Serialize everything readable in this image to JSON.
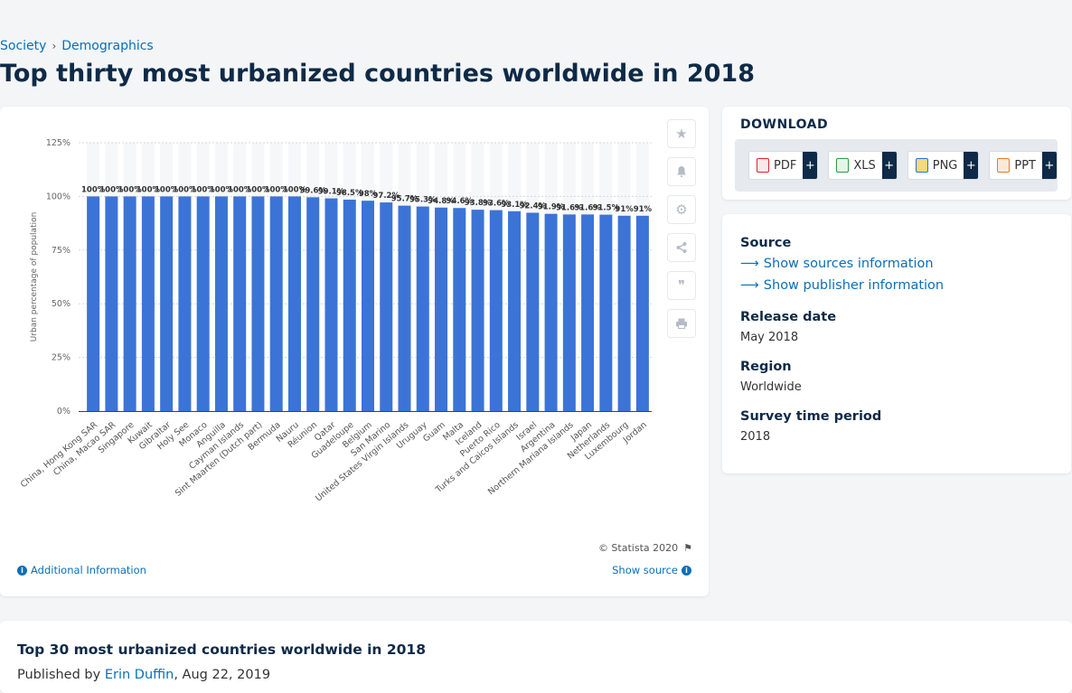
{
  "breadcrumb": {
    "items": [
      "Society",
      "Demographics"
    ],
    "sep": "›"
  },
  "page_title": "Top thirty most urbanized countries worldwide in 2018",
  "chart_card": {
    "copyright": "© Statista 2020",
    "additional_info": "Additional Information",
    "show_source": "Show source"
  },
  "download": {
    "title": "DOWNLOAD",
    "buttons": [
      {
        "label": "PDF",
        "color": "#d9262c"
      },
      {
        "label": "XLS",
        "color": "#2e9a47"
      },
      {
        "label": "PNG",
        "color": "#2a6fd6"
      },
      {
        "label": "PPT",
        "color": "#e8792b"
      }
    ],
    "plus": "+"
  },
  "info": {
    "source_heading": "Source",
    "show_sources": "Show sources information",
    "show_publisher": "Show publisher information",
    "release_heading": "Release date",
    "release_value": "May 2018",
    "region_heading": "Region",
    "region_value": "Worldwide",
    "survey_heading": "Survey time period",
    "survey_value": "2018"
  },
  "bottom": {
    "title": "Top 30 most urbanized countries worldwide in 2018",
    "published_prefix": "Published by",
    "author": "Erin Duffin",
    "date": ", Aug 22, 2019"
  },
  "colors": {
    "bar": "#3b74d6",
    "band": "#f6f7f9",
    "accent": "#0b6fb8"
  },
  "chart_data": {
    "type": "bar",
    "title": "",
    "xlabel": "",
    "ylabel": "Urban percentage of population",
    "ylim": [
      0,
      125
    ],
    "yticks": [
      "0%",
      "25%",
      "50%",
      "75%",
      "100%",
      "125%"
    ],
    "ytick_values": [
      0,
      25,
      50,
      75,
      100,
      125
    ],
    "grid": true,
    "categories": [
      "China, Hong Kong SAR",
      "China, Macao SAR",
      "Singapore",
      "Kuwait",
      "Gibraltar",
      "Holy See",
      "Monaco",
      "Anguilla",
      "Cayman Islands",
      "Sint Maarten (Dutch part)",
      "Bermuda",
      "Nauru",
      "Réunion",
      "Qatar",
      "Guadeloupe",
      "Belgium",
      "San Marino",
      "United States Virgin Islands",
      "Uruguay",
      "Guam",
      "Malta",
      "Iceland",
      "Puerto Rico",
      "Turks and Caicos Islands",
      "Israel",
      "Argentina",
      "Northern Mariana Islands",
      "Japan",
      "Netherlands",
      "Luxembourg",
      "Jordan"
    ],
    "values": [
      100,
      100,
      100,
      100,
      100,
      100,
      100,
      100,
      100,
      100,
      100,
      100,
      99.6,
      99.1,
      98.5,
      98,
      97.2,
      95.7,
      95.3,
      94.8,
      94.6,
      93.8,
      93.6,
      93.1,
      92.4,
      91.9,
      91.6,
      91.6,
      91.5,
      91,
      91
    ],
    "value_labels": [
      "100%",
      "100%",
      "100%",
      "100%",
      "100%",
      "100%",
      "100%",
      "100%",
      "100%",
      "100%",
      "100%",
      "100%",
      "99.6%",
      "99.1%",
      "98.5%",
      "98%",
      "97.2%",
      "95.7%",
      "95.3%",
      "94.8%",
      "94.6%",
      "93.8%",
      "93.6%",
      "93.1%",
      "92.4%",
      "91.9%",
      "91.6%",
      "91.6%",
      "91.5%",
      "91%",
      "91%"
    ]
  }
}
